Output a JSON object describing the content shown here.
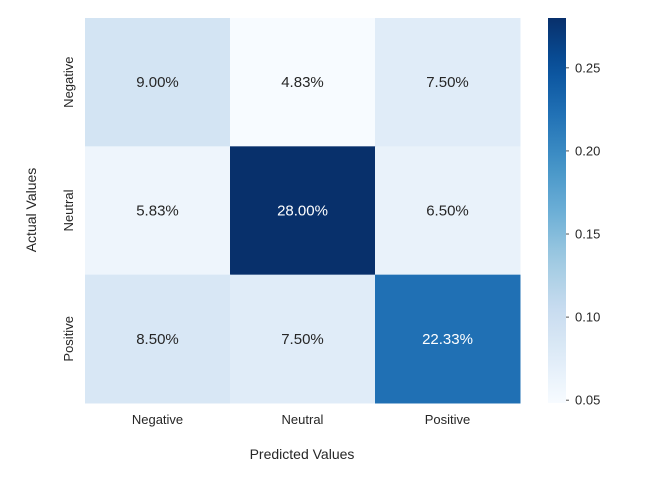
{
  "chart_data": {
    "type": "heatmap",
    "title": "",
    "xlabel": "Predicted Values",
    "ylabel": "Actual Values",
    "x_categories": [
      "Negative",
      "Neutral",
      "Positive"
    ],
    "y_categories": [
      "Negative",
      "Neutral",
      "Positive"
    ],
    "values": [
      [
        0.09,
        0.0483,
        0.075
      ],
      [
        0.0583,
        0.28,
        0.065
      ],
      [
        0.085,
        0.075,
        0.2233
      ]
    ],
    "annotations": [
      [
        "9.00%",
        "4.83%",
        "7.50%"
      ],
      [
        "5.83%",
        "28.00%",
        "6.50%"
      ],
      [
        "8.50%",
        "7.50%",
        "22.33%"
      ]
    ],
    "colormap": "Blues",
    "vmin": 0.0483,
    "vmax": 0.28,
    "colorbar": {
      "ticks": [
        0.05,
        0.1,
        0.15,
        0.2,
        0.25
      ],
      "tick_labels": [
        "0.05",
        "0.10",
        "0.15",
        "0.20",
        "0.25"
      ]
    },
    "grid": false
  }
}
